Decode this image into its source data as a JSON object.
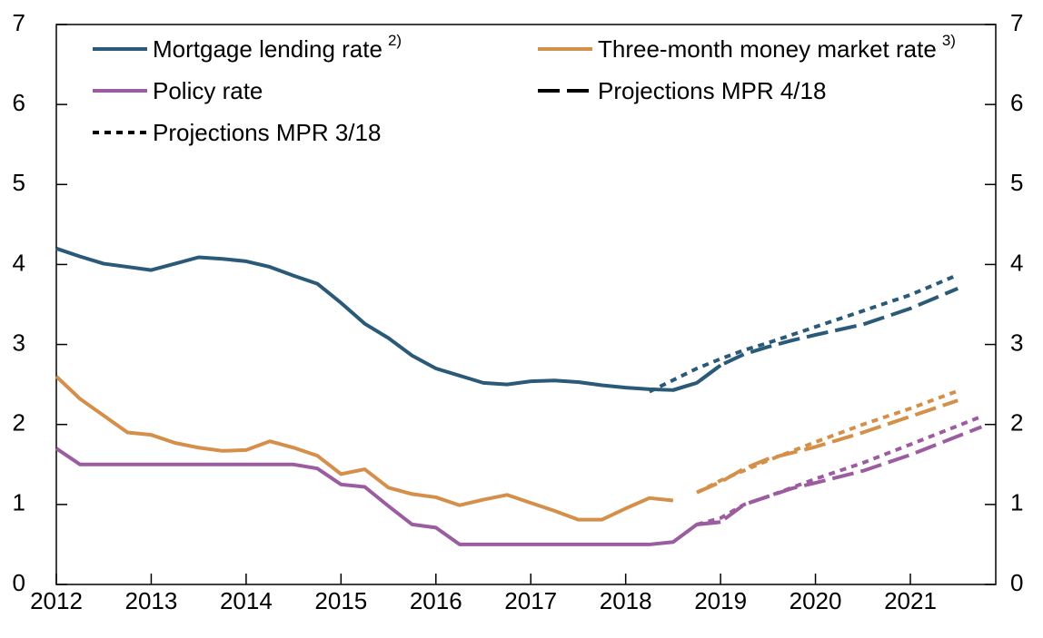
{
  "chart_data": {
    "type": "line",
    "xlim": [
      2012,
      2021.9
    ],
    "xticks": [
      2012,
      2013,
      2014,
      2015,
      2016,
      2017,
      2018,
      2019,
      2020,
      2021
    ],
    "ylim": [
      0,
      7
    ],
    "yticks": [
      0,
      1,
      2,
      3,
      4,
      5,
      6,
      7
    ],
    "y2lim": [
      0,
      7
    ],
    "y2ticks": [
      0,
      1,
      2,
      3,
      4,
      5,
      6,
      7
    ],
    "series": [
      {
        "name": "Mortgage lending rate",
        "note": "2)",
        "color": "#2a5a78",
        "x": [
          2012,
          2012.25,
          2012.5,
          2012.75,
          2013,
          2013.25,
          2013.5,
          2013.75,
          2014,
          2014.25,
          2014.5,
          2014.75,
          2015,
          2015.25,
          2015.5,
          2015.75,
          2016,
          2016.25,
          2016.5,
          2016.75,
          2017,
          2017.25,
          2017.5,
          2017.75,
          2018,
          2018.25,
          2018.5,
          2018.75,
          2019
        ],
        "values": [
          4.2,
          4.1,
          4.01,
          3.97,
          3.93,
          4.01,
          4.09,
          4.07,
          4.04,
          3.97,
          3.86,
          3.76,
          3.52,
          3.26,
          3.08,
          2.86,
          2.7,
          2.61,
          2.52,
          2.5,
          2.54,
          2.55,
          2.53,
          2.49,
          2.46,
          2.44,
          2.43,
          2.52,
          2.74
        ]
      },
      {
        "name": "Three-month money market rate",
        "note": "3)",
        "color": "#d4904a",
        "x": [
          2012,
          2012.25,
          2012.5,
          2012.75,
          2013,
          2013.25,
          2013.5,
          2013.75,
          2014,
          2014.25,
          2014.5,
          2014.75,
          2015,
          2015.25,
          2015.5,
          2015.75,
          2016,
          2016.25,
          2016.5,
          2016.75,
          2017,
          2017.25,
          2017.5,
          2017.75,
          2018,
          2018.25,
          2018.5
        ],
        "values": [
          2.6,
          2.32,
          2.11,
          1.9,
          1.87,
          1.77,
          1.71,
          1.67,
          1.68,
          1.79,
          1.71,
          1.61,
          1.38,
          1.44,
          1.21,
          1.13,
          1.09,
          0.99,
          1.06,
          1.12,
          1.02,
          0.92,
          0.81,
          0.81,
          0.95,
          1.08,
          1.05
        ]
      },
      {
        "name": "Policy rate",
        "color": "#9b5ca0",
        "x": [
          2012,
          2012.25,
          2012.5,
          2012.75,
          2013,
          2013.25,
          2013.5,
          2013.75,
          2014,
          2014.25,
          2014.5,
          2014.75,
          2015,
          2015.25,
          2015.5,
          2015.75,
          2016,
          2016.25,
          2016.5,
          2016.75,
          2017,
          2017.25,
          2017.5,
          2017.75,
          2018,
          2018.25,
          2018.5,
          2018.75,
          2019
        ],
        "values": [
          1.7,
          1.5,
          1.5,
          1.5,
          1.5,
          1.5,
          1.5,
          1.5,
          1.5,
          1.5,
          1.5,
          1.45,
          1.25,
          1.22,
          0.98,
          0.75,
          0.71,
          0.5,
          0.5,
          0.5,
          0.5,
          0.5,
          0.5,
          0.5,
          0.5,
          0.5,
          0.53,
          0.75,
          0.78
        ]
      }
    ],
    "projections": [
      {
        "name": "Projections MPR 4/18",
        "dash": "dashed",
        "lines": [
          {
            "color": "#2a5a78",
            "x": [
              2018.5,
              2018.75,
              2019,
              2019.25,
              2019.5,
              2019.75,
              2020,
              2020.5,
              2021,
              2021.5
            ],
            "values": [
              2.43,
              2.52,
              2.74,
              2.88,
              2.97,
              3.05,
              3.12,
              3.25,
              3.45,
              3.7
            ]
          },
          {
            "color": "#d4904a",
            "x": [
              2018.75,
              2019,
              2019.25,
              2019.5,
              2020,
              2020.5,
              2021,
              2021.5
            ],
            "values": [
              1.15,
              1.28,
              1.45,
              1.57,
              1.72,
              1.9,
              2.1,
              2.3
            ]
          },
          {
            "color": "#9b5ca0",
            "x": [
              2018.75,
              2019,
              2019.25,
              2019.5,
              2019.75,
              2020,
              2020.5,
              2021,
              2021.75
            ],
            "values": [
              0.75,
              0.78,
              1.0,
              1.1,
              1.2,
              1.27,
              1.42,
              1.62,
              1.97
            ]
          }
        ]
      },
      {
        "name": "Projections MPR 3/18",
        "dash": "dotted",
        "lines": [
          {
            "color": "#2a5a78",
            "x": [
              2018.25,
              2018.75,
              2019,
              2019.25,
              2019.5,
              2020,
              2020.5,
              2021,
              2021.5
            ],
            "values": [
              2.41,
              2.7,
              2.82,
              2.93,
              3.02,
              3.22,
              3.42,
              3.62,
              3.87
            ]
          },
          {
            "color": "#d4904a",
            "x": [
              2018.75,
              2019,
              2019.5,
              2020,
              2020.5,
              2021,
              2021.5
            ],
            "values": [
              1.15,
              1.3,
              1.55,
              1.78,
              2.0,
              2.2,
              2.42
            ]
          },
          {
            "color": "#9b5ca0",
            "x": [
              2018.75,
              2019,
              2019.25,
              2019.5,
              2020,
              2020.5,
              2021,
              2021.75
            ],
            "values": [
              0.75,
              0.83,
              1.0,
              1.1,
              1.32,
              1.52,
              1.75,
              2.1
            ]
          }
        ]
      }
    ]
  }
}
